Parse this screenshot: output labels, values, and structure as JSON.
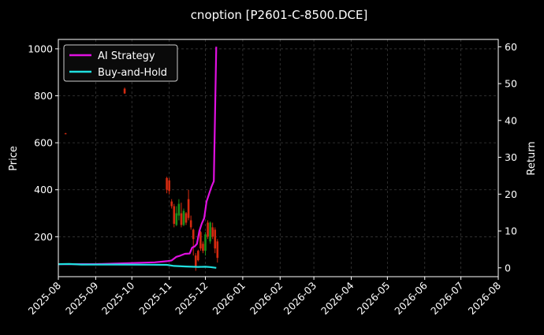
{
  "chart_data": {
    "type": "line",
    "title": "cnoption [P2601-C-8500.DCE]",
    "ylabel_left": "Price",
    "ylabel_right": "Return",
    "xlim": [
      "2025-08-01",
      "2026-08-01"
    ],
    "ylim_left": [
      30,
      1040
    ],
    "ylim_right": [
      -2.4,
      62
    ],
    "x_ticks": [
      "2025-08",
      "2025-09",
      "2025-10",
      "2025-11",
      "2025-12",
      "2026-01",
      "2026-02",
      "2026-03",
      "2026-04",
      "2026-05",
      "2026-06",
      "2026-07",
      "2026-08"
    ],
    "y_ticks_left": [
      200,
      400,
      600,
      800,
      1000
    ],
    "y_ticks_right": [
      0,
      10,
      20,
      30,
      40,
      50,
      60
    ],
    "grid": true,
    "legend": "top-left",
    "colors": {
      "background": "#000000",
      "ai_strategy": "#e010e0",
      "buy_and_hold": "#20e0e0",
      "up": "#1a8f1a",
      "down": "#d42a10",
      "text": "#ffffff",
      "grid": "#3a3a3a"
    },
    "series": [
      {
        "name": "AI Strategy",
        "axis": "right",
        "points": [
          [
            "2025-08-01",
            1.0
          ],
          [
            "2025-09-01",
            1.0
          ],
          [
            "2025-10-01",
            1.3
          ],
          [
            "2025-10-20",
            1.5
          ],
          [
            "2025-10-30",
            1.8
          ],
          [
            "2025-11-03",
            2.0
          ],
          [
            "2025-11-07",
            3.0
          ],
          [
            "2025-11-10",
            3.3
          ],
          [
            "2025-11-14",
            3.8
          ],
          [
            "2025-11-18",
            3.9
          ],
          [
            "2025-11-20",
            5.5
          ],
          [
            "2025-11-22",
            5.8
          ],
          [
            "2025-11-24",
            6.5
          ],
          [
            "2025-11-26",
            10.0
          ],
          [
            "2025-11-28",
            12.0
          ],
          [
            "2025-11-30",
            13.5
          ],
          [
            "2025-12-02",
            18.0
          ],
          [
            "2025-12-04",
            20.0
          ],
          [
            "2025-12-06",
            22.0
          ],
          [
            "2025-12-08",
            23.5
          ],
          [
            "2025-12-10",
            60.0
          ]
        ]
      },
      {
        "name": "Buy-and-Hold",
        "axis": "right",
        "points": [
          [
            "2025-08-01",
            1.0
          ],
          [
            "2025-08-10",
            1.05
          ],
          [
            "2025-08-20",
            0.9
          ],
          [
            "2025-09-15",
            0.9
          ],
          [
            "2025-10-15",
            0.85
          ],
          [
            "2025-10-30",
            0.8
          ],
          [
            "2025-11-05",
            0.5
          ],
          [
            "2025-11-15",
            0.35
          ],
          [
            "2025-11-25",
            0.25
          ],
          [
            "2025-12-01",
            0.3
          ],
          [
            "2025-12-05",
            0.2
          ],
          [
            "2025-12-10",
            0.0
          ]
        ]
      }
    ],
    "candles": [
      {
        "date": "2025-08-07",
        "o": 640,
        "c": 638,
        "h": 642,
        "l": 636
      },
      {
        "date": "2025-09-25",
        "o": 830,
        "c": 810,
        "h": 835,
        "l": 808
      },
      {
        "date": "2025-10-30",
        "o": 450,
        "c": 400,
        "h": 455,
        "l": 385
      },
      {
        "date": "2025-11-01",
        "o": 440,
        "c": 395,
        "h": 450,
        "l": 380
      },
      {
        "date": "2025-11-03",
        "o": 350,
        "c": 330,
        "h": 360,
        "l": 320
      },
      {
        "date": "2025-11-05",
        "o": 330,
        "c": 255,
        "h": 340,
        "l": 240
      },
      {
        "date": "2025-11-07",
        "o": 250,
        "c": 300,
        "h": 330,
        "l": 245
      },
      {
        "date": "2025-11-09",
        "o": 290,
        "c": 340,
        "h": 360,
        "l": 270
      },
      {
        "date": "2025-11-11",
        "o": 300,
        "c": 250,
        "h": 345,
        "l": 240
      },
      {
        "date": "2025-11-13",
        "o": 250,
        "c": 310,
        "h": 320,
        "l": 245
      },
      {
        "date": "2025-11-15",
        "o": 300,
        "c": 260,
        "h": 305,
        "l": 250
      },
      {
        "date": "2025-11-17",
        "o": 360,
        "c": 280,
        "h": 400,
        "l": 270
      },
      {
        "date": "2025-11-19",
        "o": 270,
        "c": 240,
        "h": 290,
        "l": 230
      },
      {
        "date": "2025-11-21",
        "o": 230,
        "c": 190,
        "h": 235,
        "l": 120
      },
      {
        "date": "2025-11-23",
        "o": 120,
        "c": 70,
        "h": 130,
        "l": 55
      },
      {
        "date": "2025-11-25",
        "o": 140,
        "c": 100,
        "h": 145,
        "l": 95
      },
      {
        "date": "2025-11-27",
        "o": 220,
        "c": 150,
        "h": 225,
        "l": 140
      },
      {
        "date": "2025-11-29",
        "o": 170,
        "c": 140,
        "h": 180,
        "l": 130
      },
      {
        "date": "2025-12-01",
        "o": 140,
        "c": 210,
        "h": 220,
        "l": 120
      },
      {
        "date": "2025-12-03",
        "o": 260,
        "c": 200,
        "h": 270,
        "l": 190
      },
      {
        "date": "2025-12-05",
        "o": 180,
        "c": 260,
        "h": 265,
        "l": 170
      },
      {
        "date": "2025-12-07",
        "o": 240,
        "c": 200,
        "h": 260,
        "l": 190
      },
      {
        "date": "2025-12-09",
        "o": 230,
        "c": 150,
        "h": 240,
        "l": 130
      },
      {
        "date": "2025-12-11",
        "o": 180,
        "c": 110,
        "h": 190,
        "l": 90
      }
    ]
  }
}
